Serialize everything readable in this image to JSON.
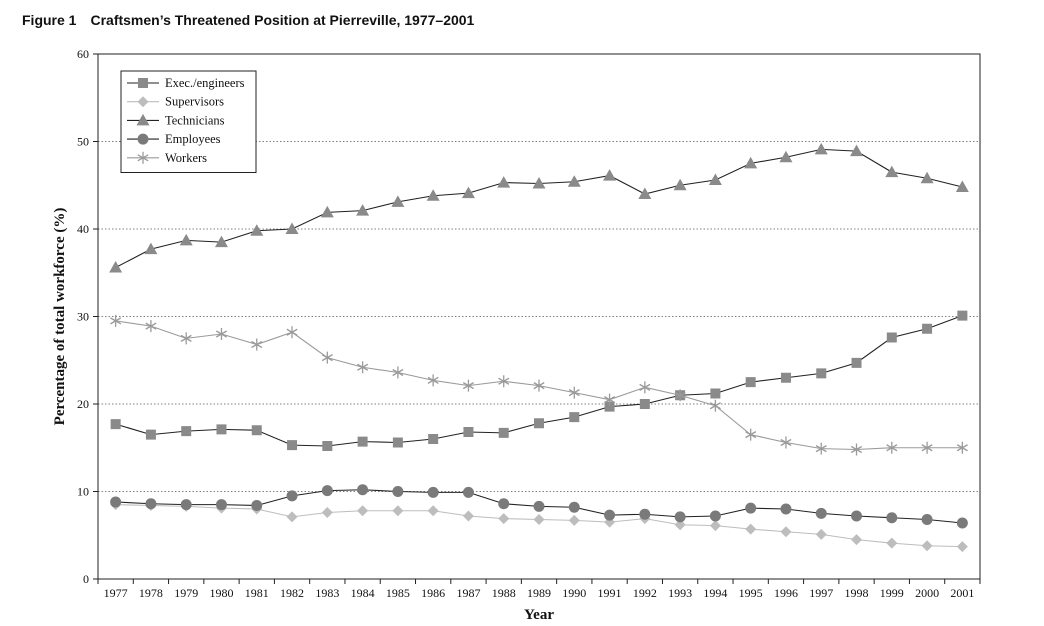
{
  "figure": {
    "number": "Figure 1",
    "title": "Craftsmen’s Threatened Position at Pierreville, 1977–2001"
  },
  "chart_data": {
    "type": "line",
    "xlabel": "Year",
    "ylabel": "Percentage of total workforce (%)",
    "ylim": [
      0,
      60
    ],
    "yticks": [
      0,
      10,
      20,
      30,
      40,
      50,
      60
    ],
    "grid": "horizontal dotted at 10, 20, 30, 40, 50",
    "legend_placement": "top-left",
    "categories": [
      "1977",
      "1978",
      "1979",
      "1980",
      "1981",
      "1982",
      "1983",
      "1984",
      "1985",
      "1986",
      "1987",
      "1988",
      "1989",
      "1990",
      "1991",
      "1992",
      "1993",
      "1994",
      "1995",
      "1996",
      "1997",
      "1998",
      "1999",
      "2000",
      "2001"
    ],
    "series": [
      {
        "name": "Exec./engineers",
        "marker": "square",
        "color": "#8a8a8a",
        "line_color": "#222222",
        "values": [
          17.7,
          16.5,
          16.9,
          17.1,
          17.0,
          15.3,
          15.2,
          15.7,
          15.6,
          16.0,
          16.8,
          16.7,
          17.8,
          18.5,
          19.7,
          20.0,
          21.0,
          21.2,
          22.5,
          23.0,
          23.5,
          24.7,
          27.6,
          28.6,
          30.1
        ]
      },
      {
        "name": "Supervisors",
        "marker": "diamond",
        "color": "#bdbdbd",
        "line_color": "#bdbdbd",
        "values": [
          8.5,
          8.4,
          8.3,
          8.1,
          8.0,
          7.1,
          7.6,
          7.8,
          7.8,
          7.8,
          7.2,
          6.9,
          6.8,
          6.7,
          6.5,
          6.9,
          6.2,
          6.1,
          5.7,
          5.4,
          5.1,
          4.5,
          4.1,
          3.8,
          3.7
        ]
      },
      {
        "name": "Technicians",
        "marker": "triangle",
        "color": "#8a8a8a",
        "line_color": "#222222",
        "values": [
          35.6,
          37.7,
          38.7,
          38.5,
          39.8,
          40.0,
          41.9,
          42.1,
          43.1,
          43.8,
          44.1,
          45.3,
          45.2,
          45.4,
          46.1,
          44.0,
          45.0,
          45.6,
          47.5,
          48.2,
          49.1,
          48.9,
          46.5,
          45.8,
          44.8
        ]
      },
      {
        "name": "Employees",
        "marker": "circle",
        "color": "#7a7a7a",
        "line_color": "#222222",
        "values": [
          8.8,
          8.6,
          8.5,
          8.5,
          8.4,
          9.5,
          10.1,
          10.2,
          10.0,
          9.9,
          9.9,
          8.6,
          8.3,
          8.2,
          7.3,
          7.4,
          7.1,
          7.2,
          8.1,
          8.0,
          7.5,
          7.2,
          7.0,
          6.8,
          6.4
        ]
      },
      {
        "name": "Workers",
        "marker": "asterisk",
        "color": "#9a9a9a",
        "line_color": "#9a9a9a",
        "values": [
          29.5,
          28.9,
          27.5,
          28.0,
          26.8,
          28.2,
          25.3,
          24.2,
          23.6,
          22.7,
          22.1,
          22.6,
          22.1,
          21.3,
          20.5,
          21.9,
          21.0,
          19.8,
          16.5,
          15.6,
          14.9,
          14.8,
          15.0,
          15.0,
          15.0
        ]
      }
    ]
  }
}
